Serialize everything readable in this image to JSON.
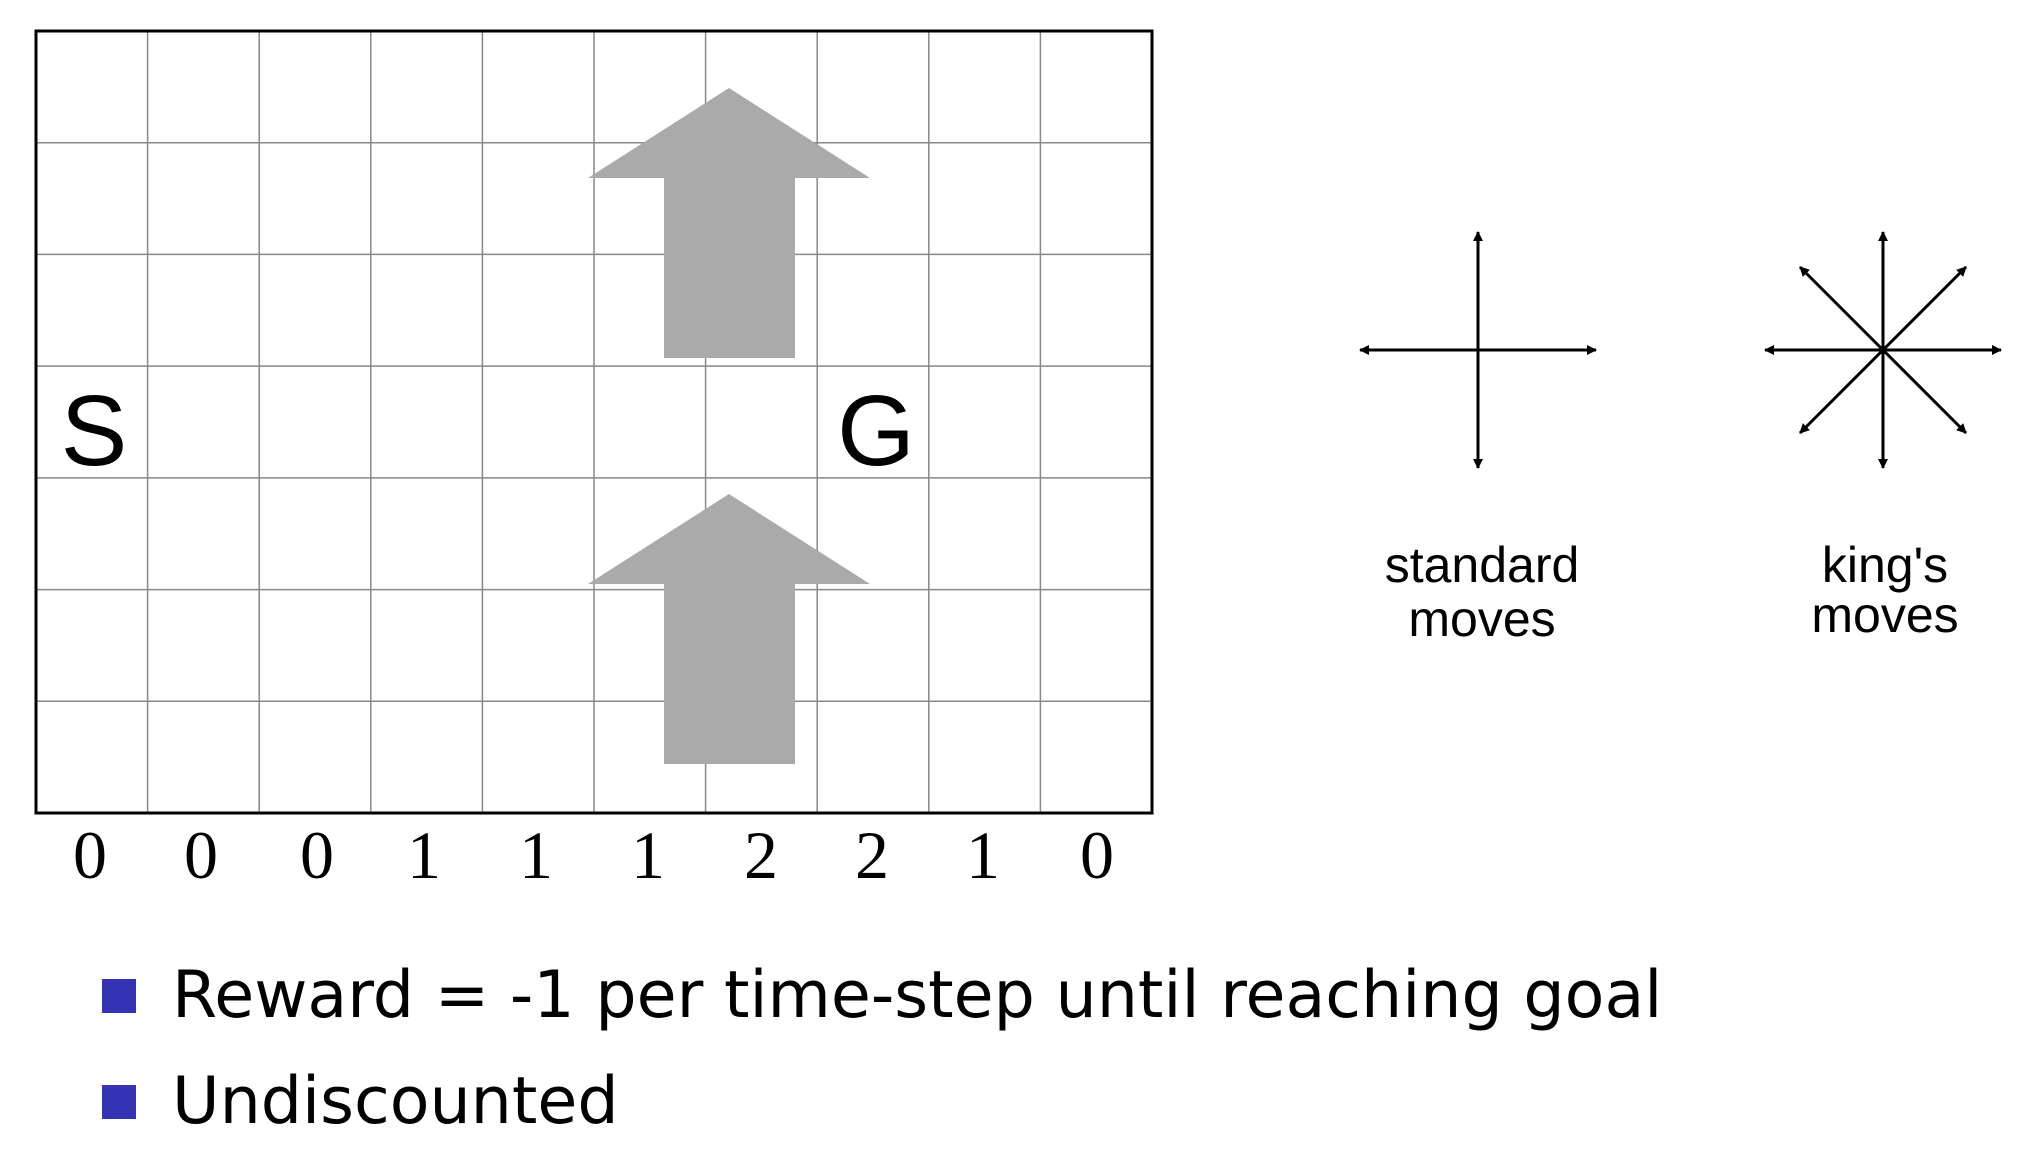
{
  "gridworld": {
    "columns": 10,
    "rows": 7,
    "start": {
      "label": "S",
      "col": 0,
      "row": 3
    },
    "goal": {
      "label": "G",
      "col": 7,
      "row": 3
    },
    "wind_strengths": [
      "0",
      "0",
      "0",
      "1",
      "1",
      "1",
      "2",
      "2",
      "1",
      "0"
    ],
    "wind_arrow_color": "#aaaaaa",
    "wind_arrow_icon": "up-arrow-icon"
  },
  "moves": {
    "standard": {
      "label_line1": "standard",
      "label_line2": "moves",
      "icon": "four-way-arrows-icon"
    },
    "kings": {
      "label_line1": "king's",
      "label_line2": "moves",
      "icon": "eight-way-arrows-icon"
    }
  },
  "bullets": [
    {
      "text": "Reward = -1 per time-step until reaching goal"
    },
    {
      "text": "Undiscounted"
    }
  ],
  "bullet_color": "#3333b3"
}
